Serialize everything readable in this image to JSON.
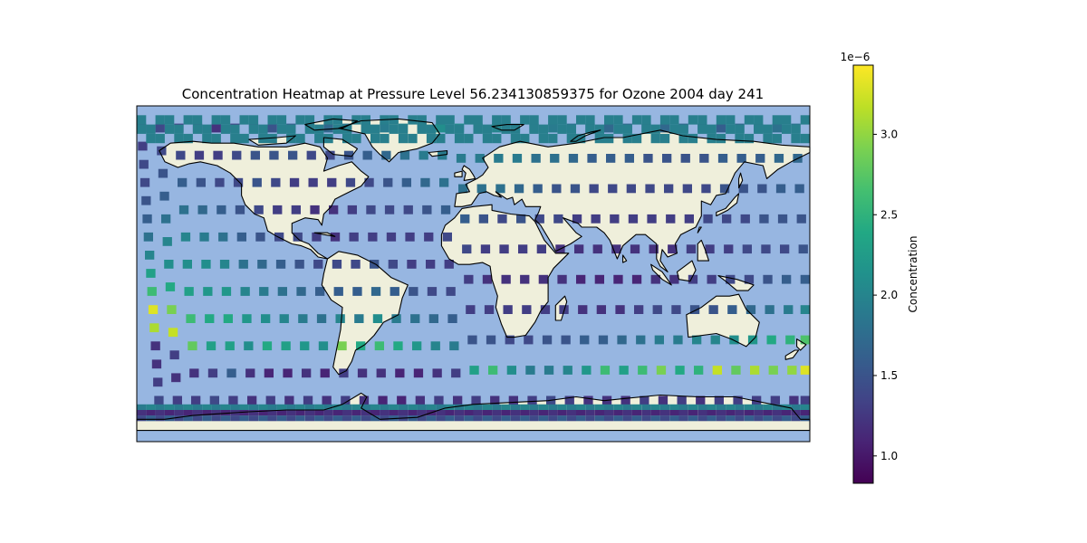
{
  "chart_data": {
    "type": "heatmap",
    "title": "Concentration Heatmap at Pressure Level 56.234130859375 for Ozone 2004 day 241",
    "projection": "PlateCarree",
    "xlim": [
      -180,
      180
    ],
    "ylim": [
      -90,
      90
    ],
    "colorbar": {
      "label": "Concentration",
      "offset_text": "1e−6",
      "vmin": 0.83,
      "vmax": 3.43,
      "ticks": [
        1.0,
        1.5,
        2.0,
        2.5,
        3.0
      ],
      "tick_labels": [
        "1.0",
        "1.5",
        "2.0",
        "2.5",
        "3.0"
      ],
      "colormap": "viridis",
      "scale": 1e-06
    },
    "colors": {
      "ocean": "#97b6e1",
      "land": "#efefdb",
      "coast": "#000000"
    },
    "cell_size_deg": [
      5,
      5
    ],
    "swaths": [
      {
        "lon_start": -180,
        "lon_end": -170,
        "values": [
          1.3,
          1.3,
          1.4,
          1.4,
          1.5,
          1.6,
          1.8,
          2.0,
          2.3,
          2.6,
          3.3,
          3.1,
          1.2,
          1.2,
          1.3,
          1.4
        ]
      },
      {
        "lon_start": -170,
        "lon_end": -160,
        "values": [
          1.4,
          1.4,
          1.5,
          1.6,
          1.8,
          2.0,
          2.1,
          2.4,
          2.9,
          3.2,
          1.3,
          1.2,
          1.3
        ]
      },
      {
        "lon_start": -160,
        "lon_end": -150,
        "values": [
          1.3,
          1.4,
          1.6,
          1.8,
          2.0,
          2.1,
          2.3,
          2.6,
          2.8,
          1.2,
          1.3
        ]
      },
      {
        "lon_start": -150,
        "lon_end": -140,
        "values": [
          1.2,
          1.3,
          1.5,
          1.7,
          1.9,
          2.1,
          2.2,
          2.4,
          2.3,
          1.3,
          1.4
        ]
      },
      {
        "lon_start": -140,
        "lon_end": -130,
        "values": [
          1.2,
          1.3,
          1.4,
          1.6,
          1.8,
          2.0,
          2.2,
          2.4,
          2.3,
          1.6,
          1.3
        ]
      },
      {
        "lon_start": -130,
        "lon_end": -120,
        "values": [
          1.3,
          1.4,
          1.4,
          1.5,
          1.6,
          1.8,
          2.0,
          2.2,
          2.1,
          1.2,
          1.2
        ]
      },
      {
        "lon_start": -120,
        "lon_end": -110,
        "values": [
          1.4,
          1.5,
          1.5,
          1.4,
          1.5,
          1.7,
          1.9,
          2.1,
          2.4,
          1.1,
          1.3
        ]
      },
      {
        "lon_start": -110,
        "lon_end": -100,
        "values": [
          1.5,
          1.5,
          1.4,
          1.3,
          1.4,
          1.6,
          1.8,
          2.0,
          2.3,
          1.1,
          1.2
        ]
      },
      {
        "lon_start": -100,
        "lon_end": -90,
        "values": [
          1.6,
          1.5,
          1.3,
          1.3,
          1.4,
          1.5,
          1.7,
          1.9,
          2.2,
          1.2,
          1.3
        ]
      },
      {
        "lon_start": -90,
        "lon_end": -80,
        "values": [
          1.6,
          1.4,
          1.3,
          1.2,
          1.3,
          1.4,
          1.6,
          1.8,
          2.1,
          1.1,
          1.2
        ]
      },
      {
        "lon_start": -80,
        "lon_end": -70,
        "values": [
          1.7,
          1.4,
          1.3,
          1.2,
          1.2,
          1.4,
          1.6,
          2.0,
          2.9,
          1.3,
          1.3
        ]
      },
      {
        "lon_start": -70,
        "lon_end": -60,
        "values": [
          1.8,
          1.5,
          1.4,
          1.3,
          1.3,
          1.4,
          1.6,
          1.9,
          2.4,
          1.2,
          1.2
        ]
      },
      {
        "lon_start": -60,
        "lon_end": -50,
        "values": [
          1.9,
          1.6,
          1.4,
          1.4,
          1.3,
          1.5,
          1.7,
          2.1,
          2.6,
          1.2,
          1.1
        ]
      },
      {
        "lon_start": -50,
        "lon_end": -40,
        "values": [
          1.9,
          1.7,
          1.5,
          1.4,
          1.3,
          1.4,
          1.6,
          1.9,
          2.4,
          1.1,
          1.1
        ]
      },
      {
        "lon_start": -40,
        "lon_end": -30,
        "values": [
          2.0,
          1.8,
          1.6,
          1.4,
          1.3,
          1.3,
          1.5,
          1.8,
          2.2,
          1.1,
          1.2
        ]
      },
      {
        "lon_start": -30,
        "lon_end": -20,
        "values": [
          2.0,
          1.9,
          1.7,
          1.5,
          1.3,
          1.3,
          1.4,
          1.7,
          2.0,
          1.2,
          1.3
        ]
      },
      {
        "lon_start": -20,
        "lon_end": -10,
        "values": [
          2.1,
          1.9,
          1.8,
          1.6,
          1.4,
          1.3,
          1.4,
          1.6,
          1.9,
          1.3,
          1.2
        ]
      },
      {
        "lon_start": -10,
        "lon_end": 0,
        "values": [
          2.1,
          1.9,
          1.8,
          1.6,
          1.4,
          1.3,
          1.3,
          1.5,
          2.3,
          1.3
        ]
      },
      {
        "lon_start": 0,
        "lon_end": 10,
        "values": [
          2.0,
          1.9,
          1.8,
          1.5,
          1.3,
          1.2,
          1.3,
          1.5,
          2.6,
          1.2
        ]
      },
      {
        "lon_start": 10,
        "lon_end": 20,
        "values": [
          2.0,
          1.9,
          1.8,
          1.4,
          1.3,
          1.2,
          1.3,
          1.4,
          2.1,
          1.2
        ]
      },
      {
        "lon_start": 20,
        "lon_end": 30,
        "values": [
          2.0,
          1.9,
          1.7,
          1.5,
          1.3,
          1.2,
          1.3,
          1.4,
          1.9,
          1.3
        ]
      },
      {
        "lon_start": 30,
        "lon_end": 40,
        "values": [
          1.9,
          1.8,
          1.6,
          1.4,
          1.3,
          1.2,
          1.3,
          1.5,
          1.9,
          1.4
        ]
      },
      {
        "lon_start": 40,
        "lon_end": 50,
        "values": [
          1.9,
          1.8,
          1.5,
          1.4,
          1.2,
          1.2,
          1.3,
          1.5,
          2.0,
          1.3
        ]
      },
      {
        "lon_start": 50,
        "lon_end": 60,
        "values": [
          1.8,
          1.7,
          1.5,
          1.3,
          1.2,
          1.1,
          1.2,
          1.6,
          2.2,
          1.2
        ]
      },
      {
        "lon_start": 60,
        "lon_end": 70,
        "values": [
          1.7,
          1.6,
          1.4,
          1.3,
          1.2,
          1.1,
          1.2,
          1.6,
          2.6,
          1.2
        ]
      },
      {
        "lon_start": 70,
        "lon_end": 80,
        "values": [
          1.7,
          1.6,
          1.4,
          1.3,
          1.2,
          1.1,
          1.2,
          1.7,
          2.3,
          1.2
        ]
      },
      {
        "lon_start": 80,
        "lon_end": 90,
        "values": [
          1.7,
          1.6,
          1.4,
          1.3,
          1.2,
          1.1,
          1.3,
          1.8,
          2.6,
          1.3
        ]
      },
      {
        "lon_start": 90,
        "lon_end": 100,
        "values": [
          1.7,
          1.5,
          1.4,
          1.3,
          1.2,
          1.2,
          1.4,
          1.9,
          2.9,
          1.2
        ]
      },
      {
        "lon_start": 100,
        "lon_end": 110,
        "values": [
          1.7,
          1.5,
          1.4,
          1.3,
          1.2,
          1.2,
          1.4,
          1.9,
          2.4,
          1.3
        ]
      },
      {
        "lon_start": 110,
        "lon_end": 120,
        "values": [
          1.7,
          1.5,
          1.4,
          1.3,
          1.3,
          1.3,
          1.5,
          2.0,
          2.5,
          1.2
        ]
      },
      {
        "lon_start": 120,
        "lon_end": 130,
        "values": [
          1.6,
          1.5,
          1.4,
          1.4,
          1.3,
          1.3,
          1.5,
          2.0,
          3.2,
          1.3
        ]
      },
      {
        "lon_start": 130,
        "lon_end": 140,
        "values": [
          1.6,
          1.6,
          1.5,
          1.4,
          1.3,
          1.4,
          1.6,
          2.1,
          2.8,
          1.3
        ]
      },
      {
        "lon_start": 140,
        "lon_end": 150,
        "values": [
          1.7,
          1.6,
          1.5,
          1.4,
          1.4,
          1.4,
          1.7,
          2.2,
          3.1,
          1.3
        ]
      },
      {
        "lon_start": 150,
        "lon_end": 160,
        "values": [
          1.7,
          1.6,
          1.5,
          1.5,
          1.4,
          1.5,
          1.8,
          2.4,
          2.9,
          1.3
        ]
      },
      {
        "lon_start": 160,
        "lon_end": 170,
        "values": [
          1.8,
          1.7,
          1.6,
          1.5,
          1.4,
          1.6,
          1.9,
          2.5,
          3.0,
          1.2
        ]
      },
      {
        "lon_start": 170,
        "lon_end": 180,
        "values": [
          1.8,
          1.7,
          1.6,
          1.5,
          1.5,
          1.6,
          2.0,
          2.7,
          3.3,
          1.3
        ]
      }
    ],
    "arctic_band": {
      "lat_top": 85,
      "lat_bottom": 70,
      "typical_value": 2.1
    },
    "antarctic_band": {
      "lat_top": -70,
      "lat_bottom": -78,
      "values_cycle": [
        1.9,
        1.2,
        1.4,
        2.0,
        1.1,
        1.6
      ]
    }
  }
}
